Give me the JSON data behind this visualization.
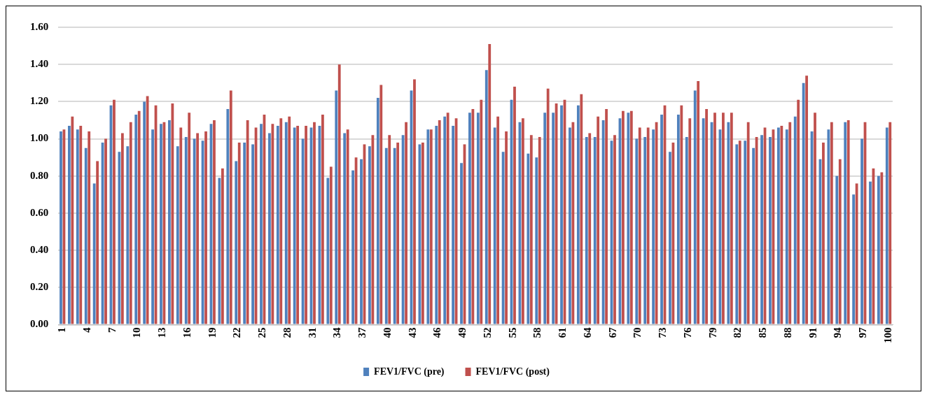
{
  "chart_data": {
    "type": "bar",
    "categories": [
      "1",
      null,
      null,
      "4",
      null,
      null,
      "7",
      null,
      null,
      "10",
      null,
      null,
      "13",
      null,
      null,
      "16",
      null,
      null,
      "19",
      null,
      null,
      "22",
      null,
      null,
      "25",
      null,
      null,
      "28",
      null,
      null,
      "31",
      null,
      null,
      "34",
      null,
      null,
      "37",
      null,
      null,
      "40",
      null,
      null,
      "43",
      null,
      null,
      "46",
      null,
      null,
      "49",
      null,
      null,
      "52",
      null,
      null,
      "55",
      null,
      null,
      "58",
      null,
      null,
      "61",
      null,
      null,
      "64",
      null,
      null,
      "67",
      null,
      null,
      "70",
      null,
      null,
      "73",
      null,
      null,
      "76",
      null,
      null,
      "79",
      null,
      null,
      "82",
      null,
      null,
      "85",
      null,
      null,
      "88",
      null,
      null,
      "91",
      null,
      null,
      "94",
      null,
      null,
      "97",
      null,
      null,
      "100"
    ],
    "series": [
      {
        "name": "FEV1/FVC (pre)",
        "color": "#4f81bd",
        "values": [
          1.04,
          1.07,
          1.05,
          0.95,
          0.76,
          0.98,
          1.18,
          0.93,
          0.96,
          1.13,
          1.2,
          1.05,
          1.08,
          1.1,
          0.96,
          1.01,
          1.0,
          0.99,
          1.08,
          0.79,
          1.16,
          0.88,
          0.98,
          0.97,
          1.08,
          1.03,
          1.07,
          1.09,
          1.06,
          1.0,
          1.06,
          1.07,
          0.79,
          1.26,
          1.03,
          0.83,
          0.89,
          0.96,
          1.22,
          0.95,
          0.95,
          1.02,
          1.26,
          0.97,
          1.05,
          1.07,
          1.12,
          1.07,
          0.87,
          1.14,
          1.14,
          1.37,
          1.06,
          0.93,
          1.21,
          1.09,
          0.92,
          0.9,
          1.14,
          1.14,
          1.18,
          1.06,
          1.18,
          1.01,
          1.01,
          1.1,
          0.99,
          1.11,
          1.14,
          1.0,
          1.01,
          1.05,
          1.13,
          0.93,
          1.13,
          1.01,
          1.26,
          1.11,
          1.09,
          1.05,
          1.09,
          0.97,
          0.99,
          0.95,
          1.02,
          1.01,
          1.06,
          1.05,
          1.12,
          1.3,
          1.04,
          0.89,
          1.05,
          0.8,
          1.09,
          0.7,
          1.0,
          0.77,
          0.8,
          1.06
        ]
      },
      {
        "name": "FEV1/FVC (post)",
        "color": "#c0504d",
        "values": [
          1.05,
          1.12,
          1.07,
          1.04,
          0.88,
          1.0,
          1.21,
          1.03,
          1.09,
          1.15,
          1.23,
          1.18,
          1.09,
          1.19,
          1.06,
          1.14,
          1.03,
          1.04,
          1.1,
          0.84,
          1.26,
          0.98,
          1.1,
          1.06,
          1.13,
          1.08,
          1.11,
          1.12,
          1.07,
          1.07,
          1.09,
          1.13,
          0.85,
          1.4,
          1.05,
          0.9,
          0.97,
          1.02,
          1.29,
          1.02,
          0.98,
          1.09,
          1.32,
          0.98,
          1.05,
          1.1,
          1.14,
          1.11,
          0.97,
          1.16,
          1.21,
          1.51,
          1.12,
          1.04,
          1.28,
          1.11,
          1.02,
          1.01,
          1.27,
          1.19,
          1.21,
          1.09,
          1.24,
          1.03,
          1.12,
          1.16,
          1.02,
          1.15,
          1.15,
          1.06,
          1.06,
          1.09,
          1.18,
          0.98,
          1.18,
          1.11,
          1.31,
          1.16,
          1.14,
          1.14,
          1.14,
          0.99,
          1.09,
          1.01,
          1.06,
          1.05,
          1.07,
          1.09,
          1.21,
          1.34,
          1.14,
          0.98,
          1.09,
          0.89,
          1.1,
          0.76,
          1.09,
          0.84,
          0.82,
          1.09
        ]
      }
    ],
    "ylim": [
      0,
      1.6
    ],
    "yticks": [
      {
        "value": 0,
        "label": "0.00"
      },
      {
        "value": 0.2,
        "label": "0.20"
      },
      {
        "value": 0.4,
        "label": "0.40"
      },
      {
        "value": 0.6,
        "label": "0.60"
      },
      {
        "value": 0.8,
        "label": "0.80"
      },
      {
        "value": 1,
        "label": "1.00"
      },
      {
        "value": 1.2,
        "label": "1.20"
      },
      {
        "value": 1.4,
        "label": "1.40"
      },
      {
        "value": 1.6,
        "label": "1.60"
      }
    ],
    "grid": "y",
    "legend": "bottom"
  }
}
